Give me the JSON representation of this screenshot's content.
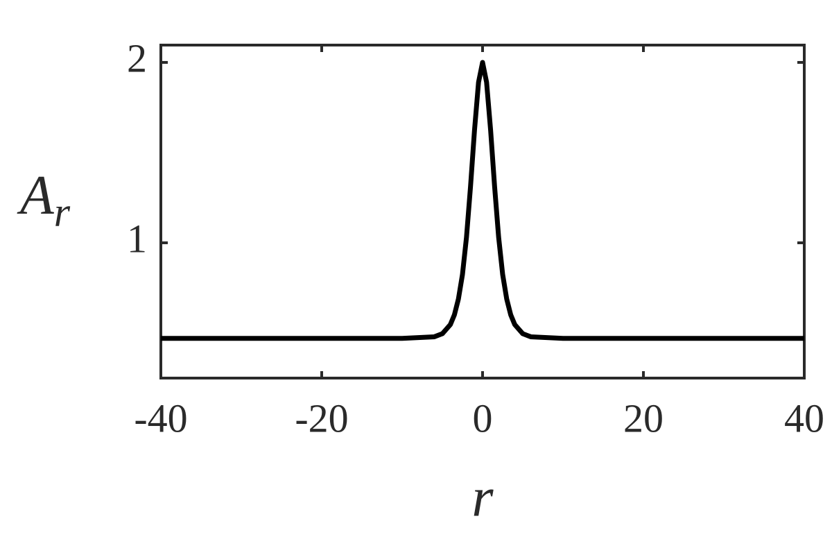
{
  "chart_data": {
    "type": "line",
    "x_label": "r",
    "y_label": "A",
    "y_label_sub": "r",
    "x": [
      -40,
      -10,
      -6,
      -5,
      -4,
      -3.5,
      -3,
      -2.5,
      -2,
      -1.5,
      -1,
      -0.5,
      0,
      0.5,
      1,
      1.5,
      2,
      2.5,
      3,
      3.5,
      4,
      5,
      6,
      10,
      40
    ],
    "series": [
      {
        "color": "#000000",
        "values": [
          0.47,
          0.47,
          0.479,
          0.496,
          0.547,
          0.601,
          0.689,
          0.824,
          1.03,
          1.31,
          1.625,
          1.89,
          2.0,
          1.89,
          1.625,
          1.31,
          1.03,
          0.824,
          0.689,
          0.601,
          0.547,
          0.496,
          0.479,
          0.47,
          0.47
        ]
      }
    ],
    "xlim": [
      -40,
      40
    ],
    "xticks": [
      -40,
      -20,
      0,
      20,
      40
    ],
    "ylim": [
      0.25,
      2.096
    ],
    "yticks": [
      1,
      2
    ]
  }
}
